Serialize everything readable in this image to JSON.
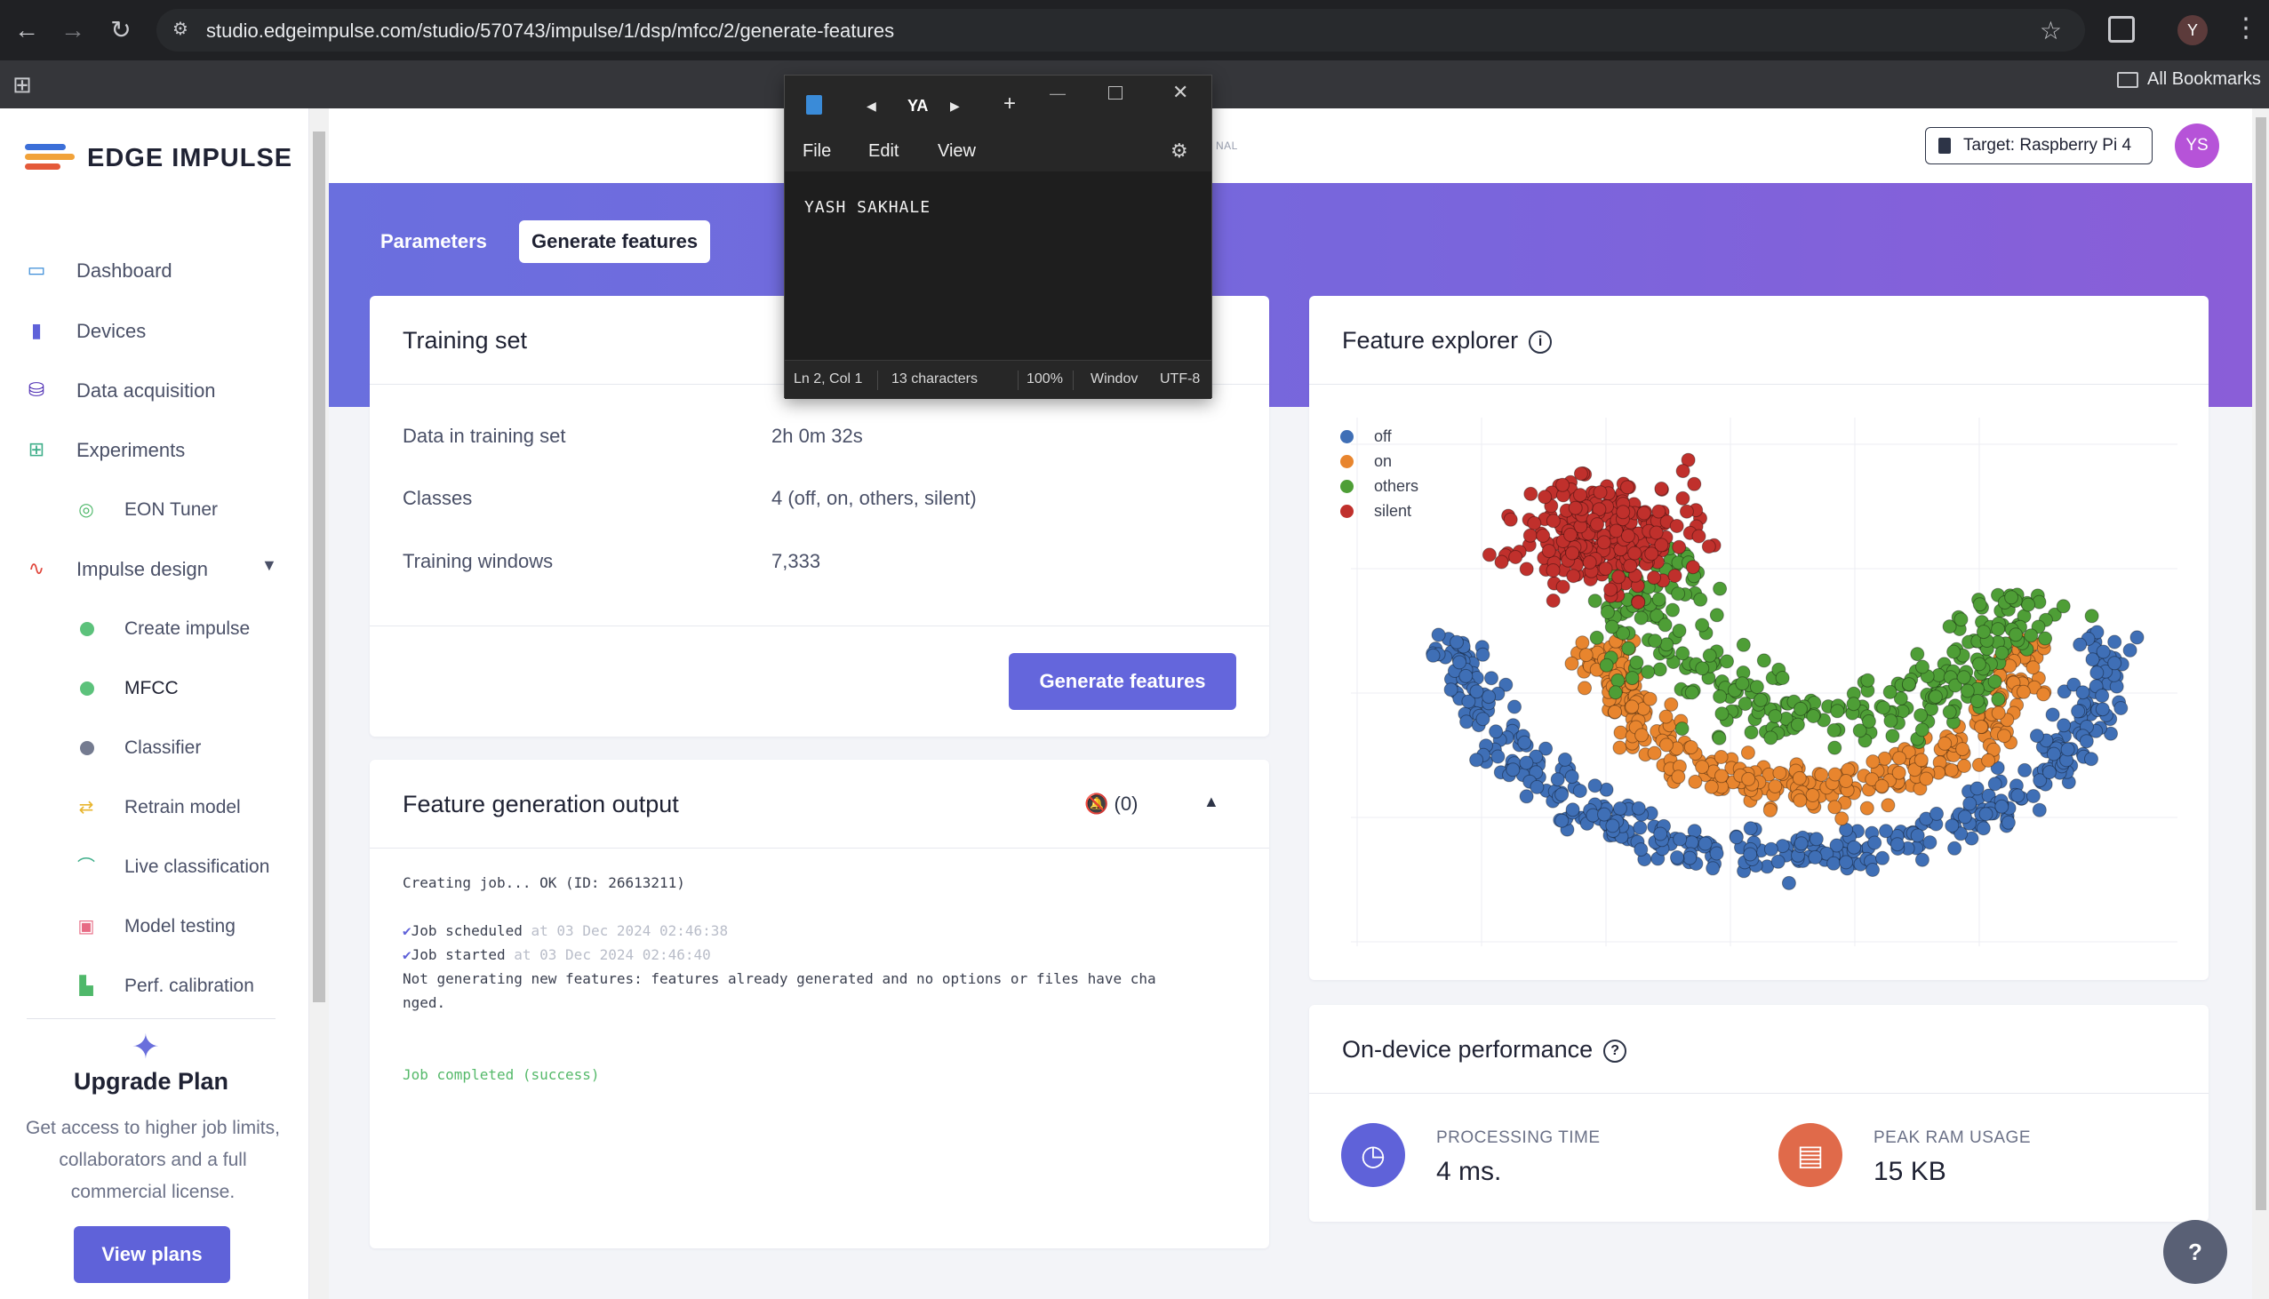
{
  "browser": {
    "url": "studio.edgeimpulse.com/studio/570743/impulse/1/dsp/mfcc/2/generate-features",
    "profile_initial": "Y",
    "bookmarks_label": "All Bookmarks"
  },
  "sidebar": {
    "logo_text": "EDGE IMPULSE",
    "items": [
      {
        "label": "Dashboard",
        "icon": "monitor-icon"
      },
      {
        "label": "Devices",
        "icon": "chip-icon"
      },
      {
        "label": "Data acquisition",
        "icon": "database-icon"
      },
      {
        "label": "Experiments",
        "icon": "grid-icon"
      },
      {
        "label": "EON Tuner",
        "icon": "compass-icon"
      },
      {
        "label": "Impulse design",
        "icon": "pulse-icon"
      },
      {
        "label": "Create impulse",
        "icon": "dot-icon"
      },
      {
        "label": "MFCC",
        "icon": "dot-icon"
      },
      {
        "label": "Classifier",
        "icon": "dot-icon"
      },
      {
        "label": "Retrain model",
        "icon": "shuffle-icon"
      },
      {
        "label": "Live classification",
        "icon": "signal-icon"
      },
      {
        "label": "Model testing",
        "icon": "clipboard-icon"
      },
      {
        "label": "Perf. calibration",
        "icon": "chart-icon"
      }
    ],
    "upgrade": {
      "title": "Upgrade Plan",
      "text": "Get access to higher job limits, collaborators and a full commercial license.",
      "button": "View plans"
    }
  },
  "header": {
    "target_label": "Target: Raspberry Pi 4",
    "avatar": "YS",
    "partial_label": "NAL"
  },
  "tabs": {
    "parameters": "Parameters",
    "generate": "Generate features"
  },
  "training_set": {
    "title": "Training set",
    "rows": [
      {
        "label": "Data in training set",
        "value": "2h 0m 32s"
      },
      {
        "label": "Classes",
        "value": "4 (off, on, others, silent)"
      },
      {
        "label": "Training windows",
        "value": "7,333"
      }
    ],
    "button": "Generate features"
  },
  "output": {
    "title": "Feature generation output",
    "notif_count": "(0)",
    "lines": {
      "l1": "Creating job... OK (ID: 26613211)",
      "l2_text": "Job scheduled",
      "l2_ts": "at 03 Dec 2024 02:46:38",
      "l3_text": "Job started",
      "l3_ts": "at 03 Dec 2024 02:46:40",
      "l4": "Not generating new features: features already generated and no options or files have cha",
      "l5": "nged.",
      "l6": "Job completed (success)"
    }
  },
  "feature_explorer": {
    "title": "Feature explorer",
    "legend": [
      {
        "label": "off",
        "color": "#3f6fb6"
      },
      {
        "label": "on",
        "color": "#e8852e"
      },
      {
        "label": "others",
        "color": "#4e9e36"
      },
      {
        "label": "silent",
        "color": "#c0302c"
      }
    ]
  },
  "chart_data": {
    "type": "scatter",
    "title": "",
    "xlabel": "",
    "ylabel": "",
    "series": [
      {
        "name": "off",
        "color": "#3f6fb6"
      },
      {
        "name": "on",
        "color": "#e8852e"
      },
      {
        "name": "others",
        "color": "#4e9e36"
      },
      {
        "name": "silent",
        "color": "#c0302c"
      }
    ],
    "legend_position": "top-left",
    "grid": true
  },
  "performance": {
    "title": "On-device performance",
    "processing_label": "PROCESSING TIME",
    "processing_value": "4 ms.",
    "ram_label": "PEAK RAM USAGE",
    "ram_value": "15 KB"
  },
  "notepad": {
    "tab_name": "YA",
    "menu_file": "File",
    "menu_edit": "Edit",
    "menu_view": "View",
    "content": "YASH SAKHALE",
    "status_pos": "Ln 2, Col 1",
    "status_chars": "13 characters",
    "status_zoom": "100%",
    "status_eol": "Windov",
    "status_enc": "UTF-8"
  }
}
